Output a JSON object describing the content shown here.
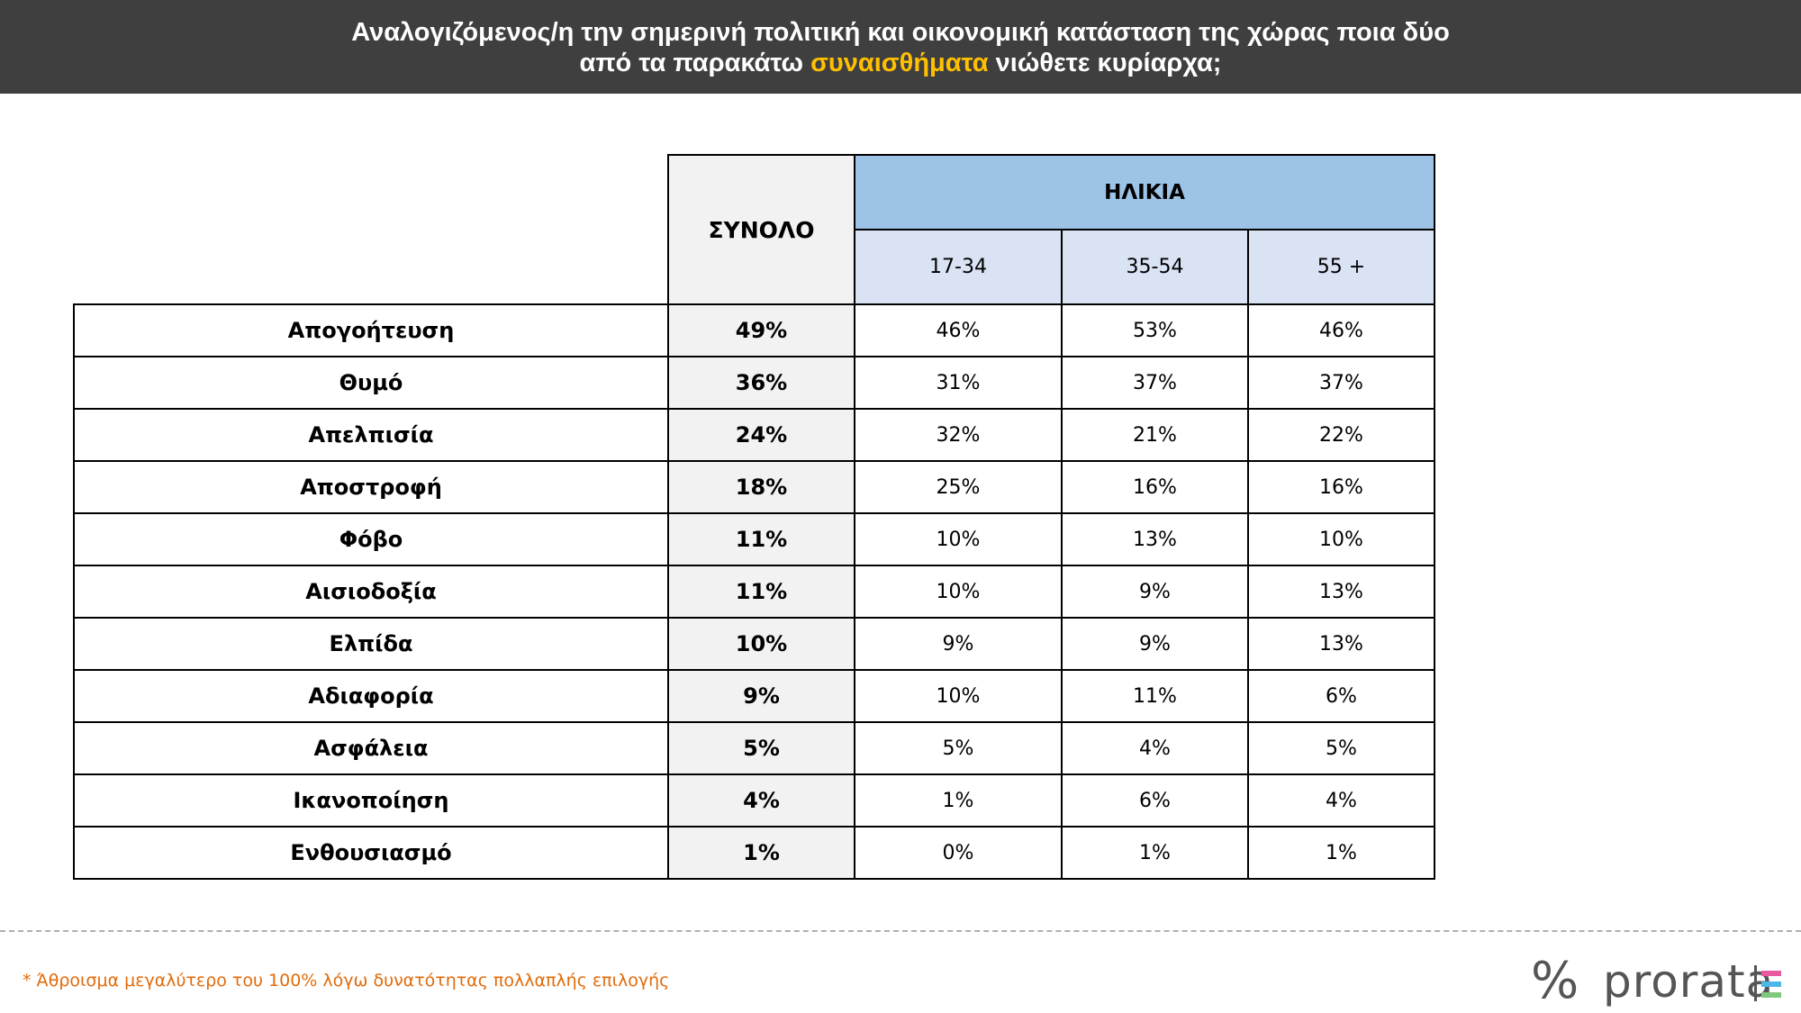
{
  "header": {
    "line1": "Αναλογιζόμενος/η την σημερινή πολιτική και οικονομική κατάσταση της χώρας ποια δύο",
    "line2_pre": "από τα παρακάτω ",
    "line2_highlight": "συναισθήματα",
    "line2_post": " νιώθετε κυρίαρχα;"
  },
  "chart_data": {
    "type": "table",
    "total_label": "ΣΥΝΟΛΟ",
    "group_label": "ΗΛΙΚΙΑ",
    "columns": [
      "17-34",
      "35-54",
      "55 +"
    ],
    "rows": [
      {
        "label": "Απογοήτευση",
        "total": "49%",
        "values": [
          "46%",
          "53%",
          "46%"
        ]
      },
      {
        "label": "Θυμό",
        "total": "36%",
        "values": [
          "31%",
          "37%",
          "37%"
        ]
      },
      {
        "label": "Απελπισία",
        "total": "24%",
        "values": [
          "32%",
          "21%",
          "22%"
        ]
      },
      {
        "label": "Αποστροφή",
        "total": "18%",
        "values": [
          "25%",
          "16%",
          "16%"
        ]
      },
      {
        "label": "Φόβο",
        "total": "11%",
        "values": [
          "10%",
          "13%",
          "10%"
        ]
      },
      {
        "label": "Αισιοδοξία",
        "total": "11%",
        "values": [
          "10%",
          "9%",
          "13%"
        ]
      },
      {
        "label": "Ελπίδα",
        "total": "10%",
        "values": [
          "9%",
          "9%",
          "13%"
        ]
      },
      {
        "label": "Αδιαφορία",
        "total": "9%",
        "values": [
          "10%",
          "11%",
          "6%"
        ]
      },
      {
        "label": "Ασφάλεια",
        "total": "5%",
        "values": [
          "5%",
          "4%",
          "5%"
        ]
      },
      {
        "label": "Ικανοποίηση",
        "total": "4%",
        "values": [
          "1%",
          "6%",
          "4%"
        ]
      },
      {
        "label": "Ενθουσιασμό",
        "total": "1%",
        "values": [
          "0%",
          "1%",
          "1%"
        ]
      }
    ]
  },
  "footnote": "* Άθροισμα μεγαλύτερο του 100% λόγω δυνατότητας πολλαπλής επιλογής",
  "logo": {
    "symbol": "%",
    "text": "prorata",
    "stripe_colors": [
      "#e75aa0",
      "#4db6e8",
      "#7fc97f"
    ]
  },
  "colors": {
    "header_bg": "#3f3f3f",
    "highlight": "#ffc000",
    "group_header_bg": "#9dc3e6",
    "subheader_bg": "#dae3f3",
    "total_bg": "#f2f2f2",
    "footnote": "#e26b0a"
  }
}
